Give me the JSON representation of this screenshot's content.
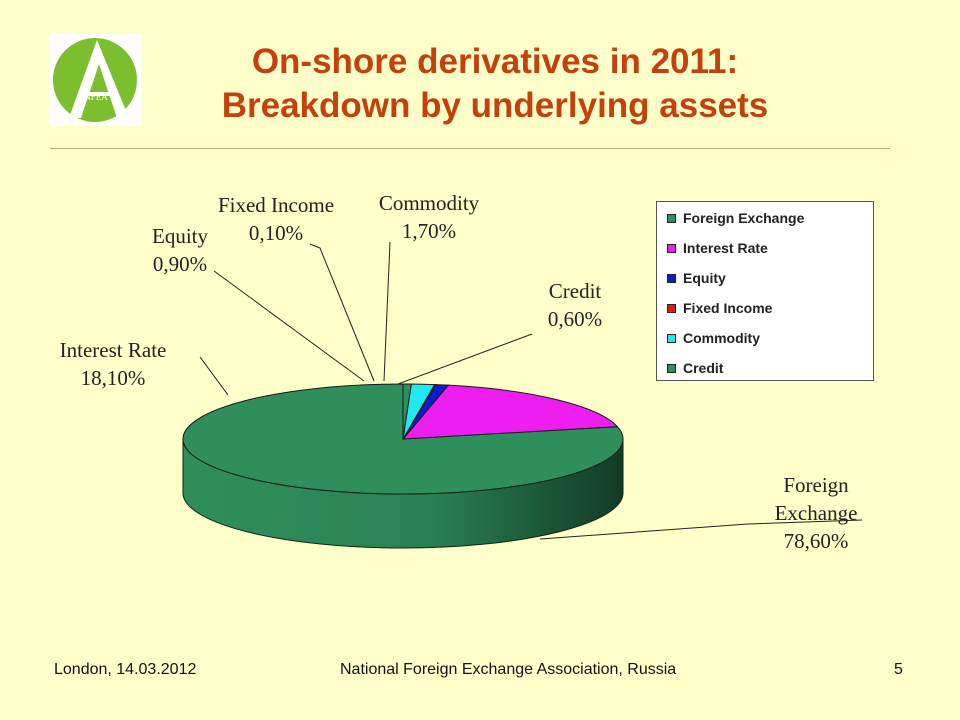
{
  "title_line1": "On-shore derivatives in 2011:",
  "title_line2": "Breakdown by underlying assets",
  "logo": {
    "icon": "nfea-logo",
    "text": "NFEA"
  },
  "chart_data": {
    "type": "pie",
    "style": "3d",
    "legend_position": "top-right",
    "categories": [
      "Foreign Exchange",
      "Interest Rate",
      "Equity",
      "Fixed Income",
      "Commodity",
      "Credit"
    ],
    "values": [
      78.6,
      18.1,
      0.9,
      0.1,
      1.7,
      0.6
    ],
    "value_labels": [
      "78,60%",
      "18,10%",
      "0,90%",
      "0,10%",
      "1,70%",
      "0,60%"
    ],
    "colors": [
      "#2f8f5c",
      "#ef1ef0",
      "#0c1bd0",
      "#e81818",
      "#22e8f2",
      "#2f8f5c"
    ],
    "slice_labels": [
      [
        "Foreign",
        "Exchange",
        "78,60%"
      ],
      [
        "Interest Rate",
        "18,10%"
      ],
      [
        "Equity",
        "0,90%"
      ],
      [
        "Fixed Income",
        "0,10%"
      ],
      [
        "Commodity",
        "1,70%"
      ],
      [
        "Credit",
        "0,60%"
      ]
    ]
  },
  "footer": {
    "left": "London, 14.03.2012",
    "center": "National Foreign Exchange Association, Russia",
    "page": "5"
  }
}
